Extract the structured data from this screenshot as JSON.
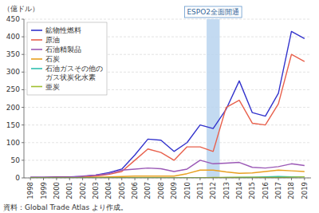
{
  "chart_data": {
    "type": "line",
    "y_label": "（億ドル）",
    "source": "資料：Global Trade Atlas より作成。",
    "x": [
      1998,
      1999,
      2000,
      2001,
      2002,
      2003,
      2004,
      2005,
      2006,
      2007,
      2008,
      2009,
      2010,
      2011,
      2012,
      2013,
      2014,
      2015,
      2016,
      2017,
      2018,
      2019
    ],
    "xlim": [
      1997.5,
      2019.5
    ],
    "xticks": [
      1998,
      1999,
      2000,
      2001,
      2002,
      2003,
      2004,
      2005,
      2006,
      2007,
      2008,
      2009,
      2010,
      2011,
      2012,
      2013,
      2014,
      2015,
      2016,
      2017,
      2018,
      2019
    ],
    "ylim": [
      0,
      450
    ],
    "yticks": [
      0,
      50,
      100,
      150,
      200,
      250,
      300,
      350,
      400,
      450
    ],
    "grid": true,
    "legend": "upper left",
    "annotations": [
      {
        "text": "ESPO2全面開通",
        "x": [
          2011.5,
          2012.5
        ],
        "color": "#b8d4ee"
      }
    ],
    "series": [
      {
        "name": "鉱物性燃料",
        "color": "#3333cc",
        "values": [
          2,
          2,
          3,
          3,
          4,
          8,
          15,
          25,
          65,
          110,
          107,
          75,
          100,
          150,
          140,
          195,
          275,
          185,
          175,
          240,
          415,
          395
        ]
      },
      {
        "name": "原油",
        "color": "#e8604c",
        "values": [
          1,
          1,
          2,
          2,
          2,
          5,
          10,
          18,
          50,
          82,
          72,
          50,
          88,
          88,
          75,
          200,
          220,
          155,
          150,
          210,
          350,
          330
        ]
      },
      {
        "name": "石油精製品",
        "color": "#9b59b6",
        "values": [
          1,
          1,
          1,
          2,
          5,
          8,
          12,
          22,
          25,
          28,
          26,
          18,
          25,
          50,
          40,
          42,
          44,
          30,
          28,
          32,
          40,
          35
        ]
      },
      {
        "name": "石炭",
        "color": "#e8a020",
        "values": [
          0,
          0,
          0,
          0,
          1,
          2,
          3,
          4,
          5,
          5,
          5,
          5,
          12,
          22,
          22,
          17,
          13,
          14,
          18,
          22,
          20,
          18
        ]
      },
      {
        "name": "石油ガスその他の\nガス状炭化水素",
        "color": "#30c0b0",
        "values": [
          0,
          0,
          0,
          0,
          0,
          0,
          0,
          0,
          0,
          0,
          0,
          0,
          0,
          0,
          0,
          1,
          1,
          2,
          3,
          4,
          3,
          3
        ]
      },
      {
        "name": "亜炭",
        "color": "#a0c030",
        "values": [
          0,
          0,
          0,
          0,
          0,
          0,
          0,
          0,
          0,
          0,
          0,
          0,
          0,
          0,
          1,
          1,
          2,
          2,
          1,
          1,
          2,
          3
        ]
      }
    ]
  }
}
